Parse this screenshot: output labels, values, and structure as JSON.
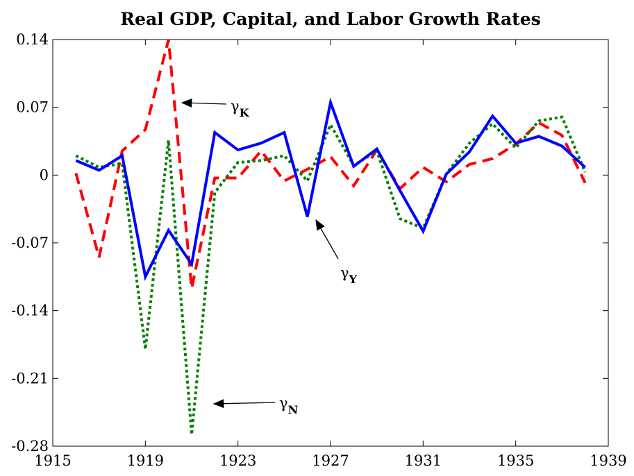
{
  "chart_data": {
    "type": "line",
    "title": "Real GDP, Capital, and Labor Growth Rates",
    "x": [
      1916,
      1917,
      1918,
      1919,
      1920,
      1921,
      1922,
      1923,
      1924,
      1925,
      1926,
      1927,
      1928,
      1929,
      1930,
      1931,
      1932,
      1933,
      1934,
      1935,
      1936,
      1937,
      1938
    ],
    "series": [
      {
        "color": "#0000ff",
        "style": "solid",
        "values": [
          0.015,
          0.005,
          0.02,
          -0.105,
          -0.057,
          -0.092,
          0.044,
          0.026,
          0.033,
          0.044,
          -0.043,
          0.075,
          0.009,
          0.027,
          -0.016,
          -0.058,
          0.001,
          0.024,
          0.061,
          0.033,
          0.04,
          0.03,
          0.008
        ]
      },
      {
        "color": "#ff0000",
        "style": "dashed",
        "values": [
          0.002,
          -0.085,
          0.025,
          0.047,
          0.14,
          -0.117,
          -0.003,
          -0.003,
          0.025,
          -0.006,
          0.006,
          0.019,
          -0.011,
          0.026,
          -0.014,
          0.008,
          -0.007,
          0.011,
          0.017,
          0.032,
          0.054,
          0.041,
          -0.008
        ]
      },
      {
        "color": "#008000",
        "style": "dotted",
        "values": [
          0.02,
          0.008,
          0.012,
          -0.18,
          0.036,
          -0.268,
          -0.018,
          0.013,
          0.015,
          0.02,
          -0.006,
          0.052,
          0.01,
          0.025,
          -0.045,
          -0.055,
          0.001,
          0.033,
          0.053,
          0.028,
          0.056,
          0.06,
          0.003
        ]
      }
    ],
    "xlim": [
      1915,
      1939
    ],
    "xticks": [
      1915,
      1919,
      1923,
      1927,
      1931,
      1935,
      1939
    ],
    "ylim": [
      -0.28,
      0.14
    ],
    "yticks": [
      0.14,
      0.07,
      0,
      -0.07,
      -0.14,
      -0.21,
      -0.28
    ],
    "annotations": [
      {
        "symbol": "γ",
        "subscript": "K"
      },
      {
        "symbol": "γ",
        "subscript": "Y"
      },
      {
        "symbol": "γ",
        "subscript": "N"
      }
    ]
  }
}
